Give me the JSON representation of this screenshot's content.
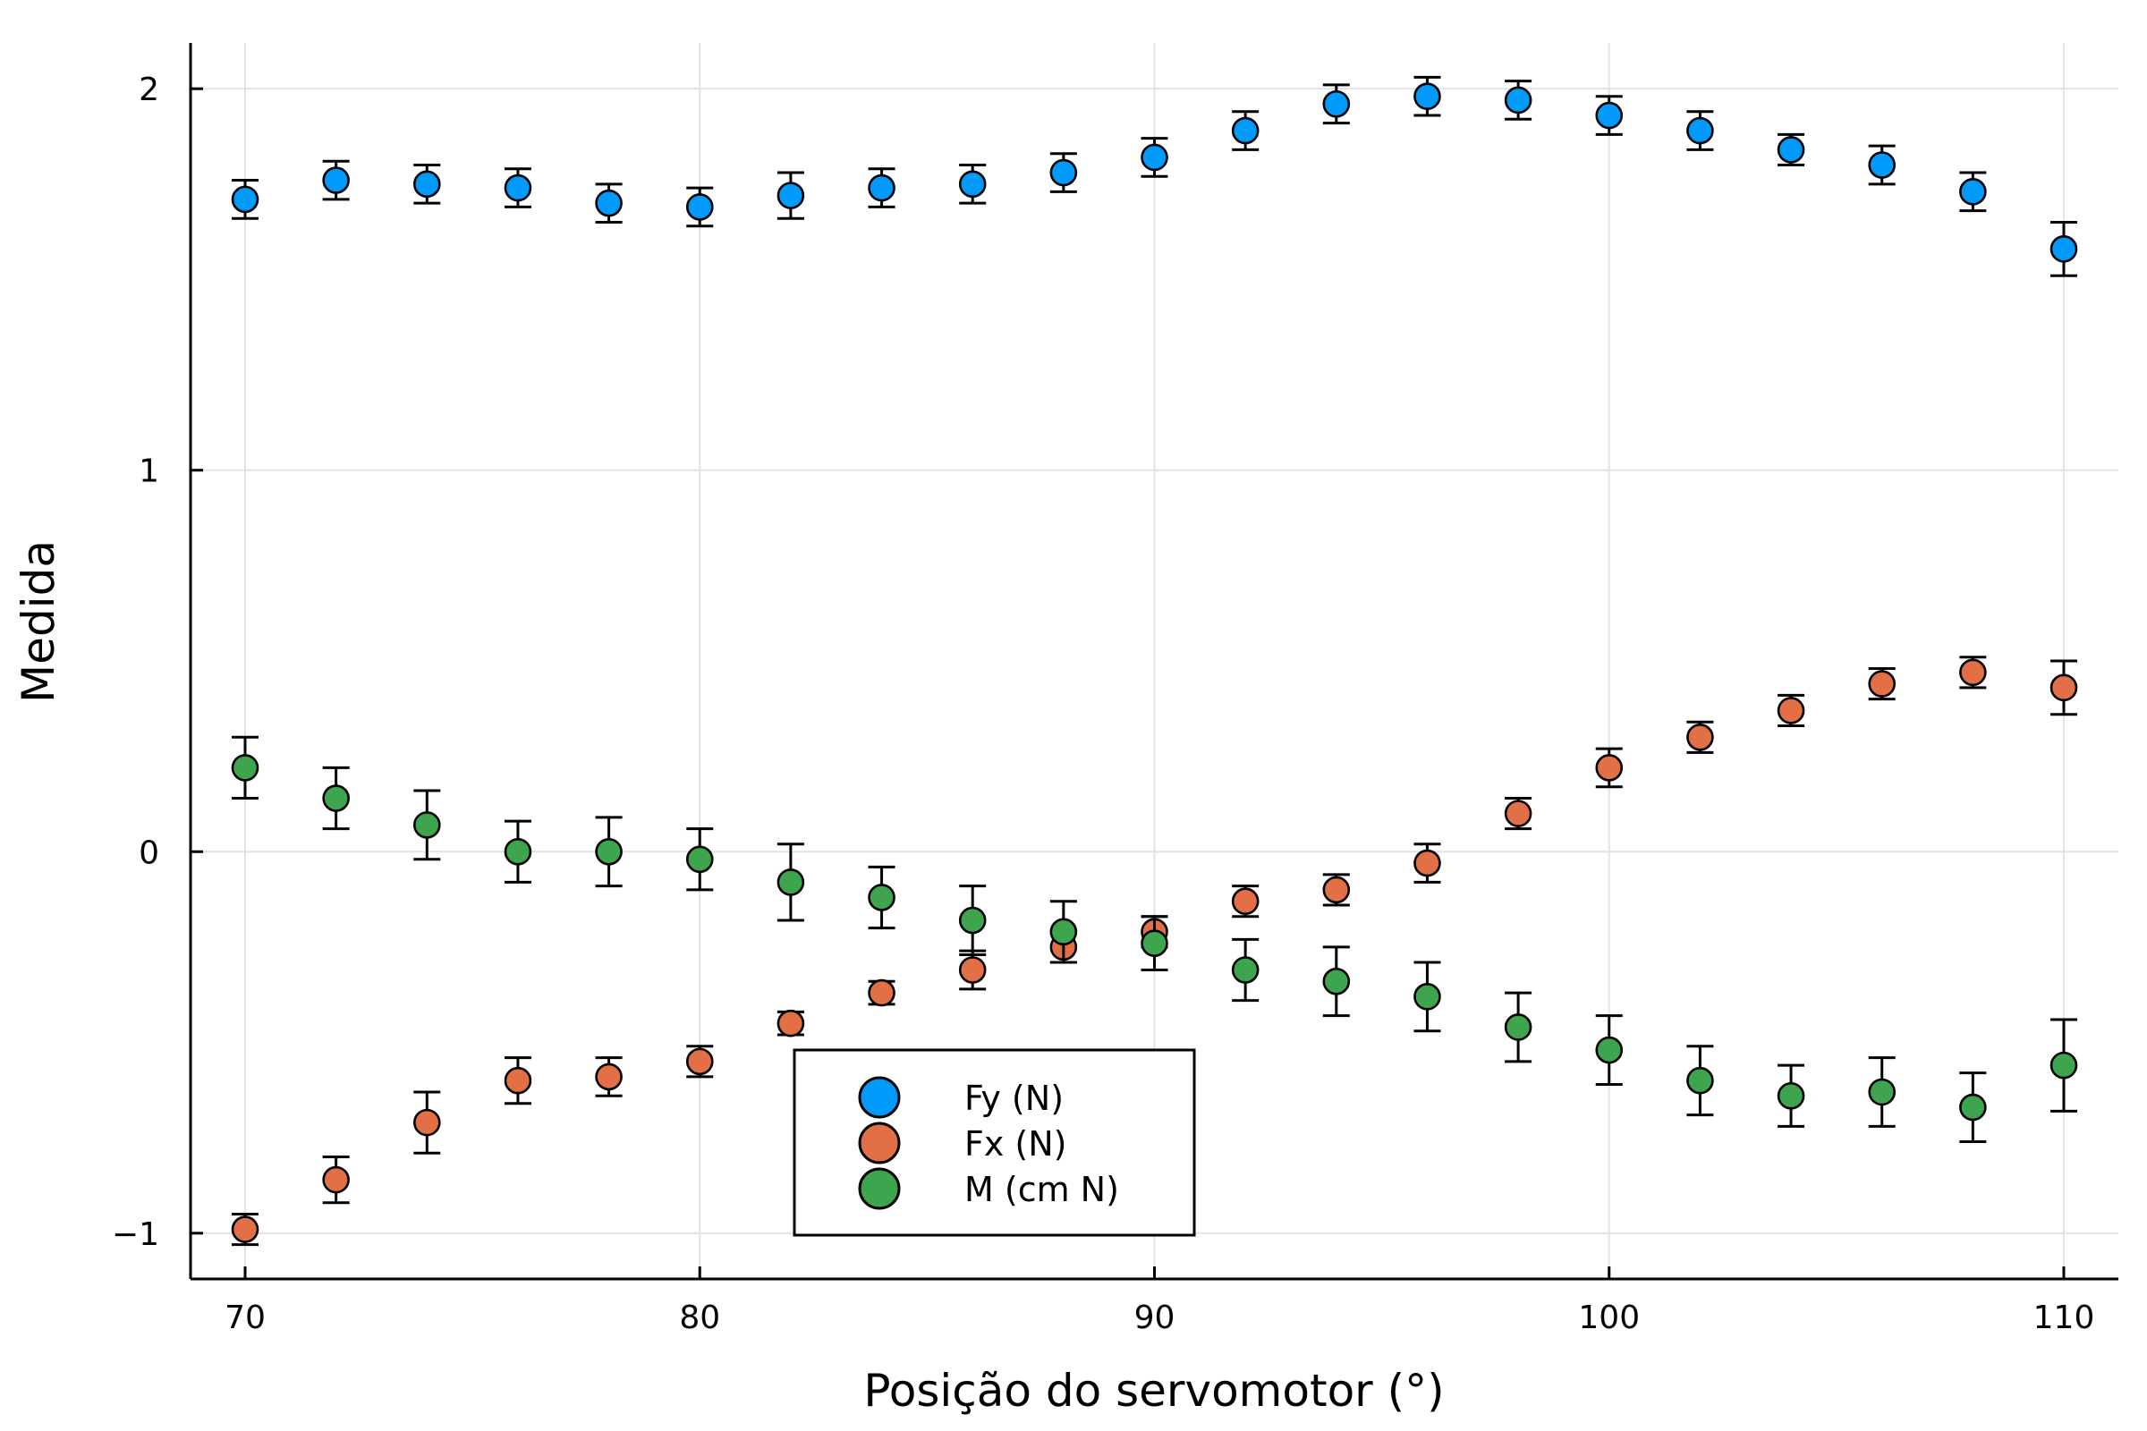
{
  "chart_data": {
    "type": "scatter",
    "xlabel": "Posição do servomotor (°)",
    "ylabel": "Medida",
    "xlim": [
      68.8,
      111.2
    ],
    "ylim": [
      -1.12,
      2.12
    ],
    "xticks": [
      70,
      80,
      90,
      100,
      110
    ],
    "yticks": [
      -1,
      0,
      1,
      2
    ],
    "ytick_labels": [
      "−1",
      "0",
      "1",
      "2"
    ],
    "grid": true,
    "legend_position": "bottom-center",
    "x": [
      70,
      72,
      74,
      76,
      78,
      80,
      82,
      84,
      86,
      88,
      90,
      92,
      94,
      96,
      98,
      100,
      102,
      104,
      106,
      108,
      110
    ],
    "series": [
      {
        "name": "Fy (N)",
        "color": "#009AFA",
        "values": [
          1.71,
          1.76,
          1.75,
          1.74,
          1.7,
          1.69,
          1.72,
          1.74,
          1.75,
          1.78,
          1.82,
          1.89,
          1.96,
          1.98,
          1.97,
          1.93,
          1.89,
          1.84,
          1.8,
          1.73,
          1.58
        ],
        "errors": [
          0.05,
          0.05,
          0.05,
          0.05,
          0.05,
          0.05,
          0.06,
          0.05,
          0.05,
          0.05,
          0.05,
          0.05,
          0.05,
          0.05,
          0.05,
          0.05,
          0.05,
          0.04,
          0.05,
          0.05,
          0.07
        ]
      },
      {
        "name": "Fx (N)",
        "color": "#E36F47",
        "values": [
          -0.99,
          -0.86,
          -0.71,
          -0.6,
          -0.59,
          -0.55,
          -0.45,
          -0.37,
          -0.31,
          -0.25,
          -0.21,
          -0.13,
          -0.1,
          -0.03,
          0.1,
          0.22,
          0.3,
          0.37,
          0.44,
          0.47,
          0.43
        ],
        "errors": [
          0.04,
          0.06,
          0.08,
          0.06,
          0.05,
          0.04,
          0.03,
          0.03,
          0.05,
          0.04,
          0.04,
          0.04,
          0.04,
          0.05,
          0.04,
          0.05,
          0.04,
          0.04,
          0.04,
          0.04,
          0.07
        ]
      },
      {
        "name": "M (cm N)",
        "color": "#3EA44E",
        "values": [
          0.22,
          0.14,
          0.07,
          0.0,
          0.0,
          -0.02,
          -0.08,
          -0.12,
          -0.18,
          -0.21,
          -0.24,
          -0.31,
          -0.34,
          -0.38,
          -0.46,
          -0.52,
          -0.6,
          -0.64,
          -0.63,
          -0.67,
          -0.56
        ],
        "errors": [
          0.08,
          0.08,
          0.09,
          0.08,
          0.09,
          0.08,
          0.1,
          0.08,
          0.09,
          0.08,
          0.07,
          0.08,
          0.09,
          0.09,
          0.09,
          0.09,
          0.09,
          0.08,
          0.09,
          0.09,
          0.12
        ]
      }
    ]
  }
}
